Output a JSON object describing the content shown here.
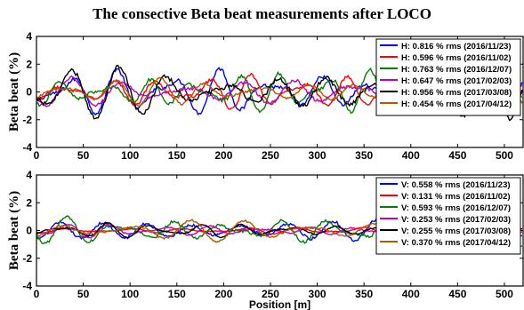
{
  "figure_title": "The consective Beta beat measurements after LOCO",
  "chart_data": [
    {
      "type": "line",
      "plane": "H",
      "ylabel": "Beta beat (%)",
      "xlabel": "",
      "xlim": [
        0,
        520
      ],
      "ylim": [
        -4,
        4
      ],
      "xticks": [
        0,
        50,
        100,
        150,
        200,
        250,
        300,
        350,
        400,
        450,
        500
      ],
      "yticks": [
        -4,
        -2,
        0,
        2,
        4
      ],
      "grid": false,
      "legend_position": "top-right",
      "series": [
        {
          "name": "H: 0.816 % rms (2016/11/23)",
          "color": "#0000ff",
          "x_range": [
            0,
            520
          ],
          "amplitude": 0.816
        },
        {
          "name": "H: 0.596 % rms (2016/11/02)",
          "color": "#ff0000",
          "x_range": [
            0,
            520
          ],
          "amplitude": 0.596
        },
        {
          "name": "H: 0.763 % rms (2016/12/07)",
          "color": "#008000",
          "x_range": [
            0,
            520
          ],
          "amplitude": 0.763
        },
        {
          "name": "H: 0.647 % rms (2017/02/03)",
          "color": "#bf00bf",
          "x_range": [
            0,
            520
          ],
          "amplitude": 0.647
        },
        {
          "name": "H: 0.956 % rms (2017/03/08)",
          "color": "#000000",
          "x_range": [
            0,
            520
          ],
          "amplitude": 0.956
        },
        {
          "name": "H: 0.454 % rms (2017/04/12)",
          "color": "#b35900",
          "x_range": [
            0,
            520
          ],
          "amplitude": 0.454
        }
      ]
    },
    {
      "type": "line",
      "plane": "V",
      "ylabel": "Beta beat (%)",
      "xlabel": "Position [m]",
      "xlim": [
        0,
        520
      ],
      "ylim": [
        -4,
        4
      ],
      "xticks": [
        0,
        50,
        100,
        150,
        200,
        250,
        300,
        350,
        400,
        450,
        500
      ],
      "yticks": [
        -4,
        -2,
        0,
        2,
        4
      ],
      "grid": false,
      "legend_position": "top-right",
      "series": [
        {
          "name": "V: 0.558 % rms (2016/11/23)",
          "color": "#0000ff",
          "x_range": [
            0,
            520
          ],
          "amplitude": 0.558
        },
        {
          "name": "V: 0.131 % rms (2016/11/02)",
          "color": "#ff0000",
          "x_range": [
            0,
            520
          ],
          "amplitude": 0.131
        },
        {
          "name": "V: 0.593 % rms (2016/12/07)",
          "color": "#008000",
          "x_range": [
            0,
            520
          ],
          "amplitude": 0.593
        },
        {
          "name": "V: 0.253 % rms (2017/02/03)",
          "color": "#bf00bf",
          "x_range": [
            0,
            520
          ],
          "amplitude": 0.253
        },
        {
          "name": "V: 0.255 % rms (2017/03/08)",
          "color": "#000000",
          "x_range": [
            0,
            520
          ],
          "amplitude": 0.255
        },
        {
          "name": "V: 0.370 % rms (2017/04/12)",
          "color": "#b35900",
          "x_range": [
            0,
            520
          ],
          "amplitude": 0.37
        }
      ]
    }
  ]
}
